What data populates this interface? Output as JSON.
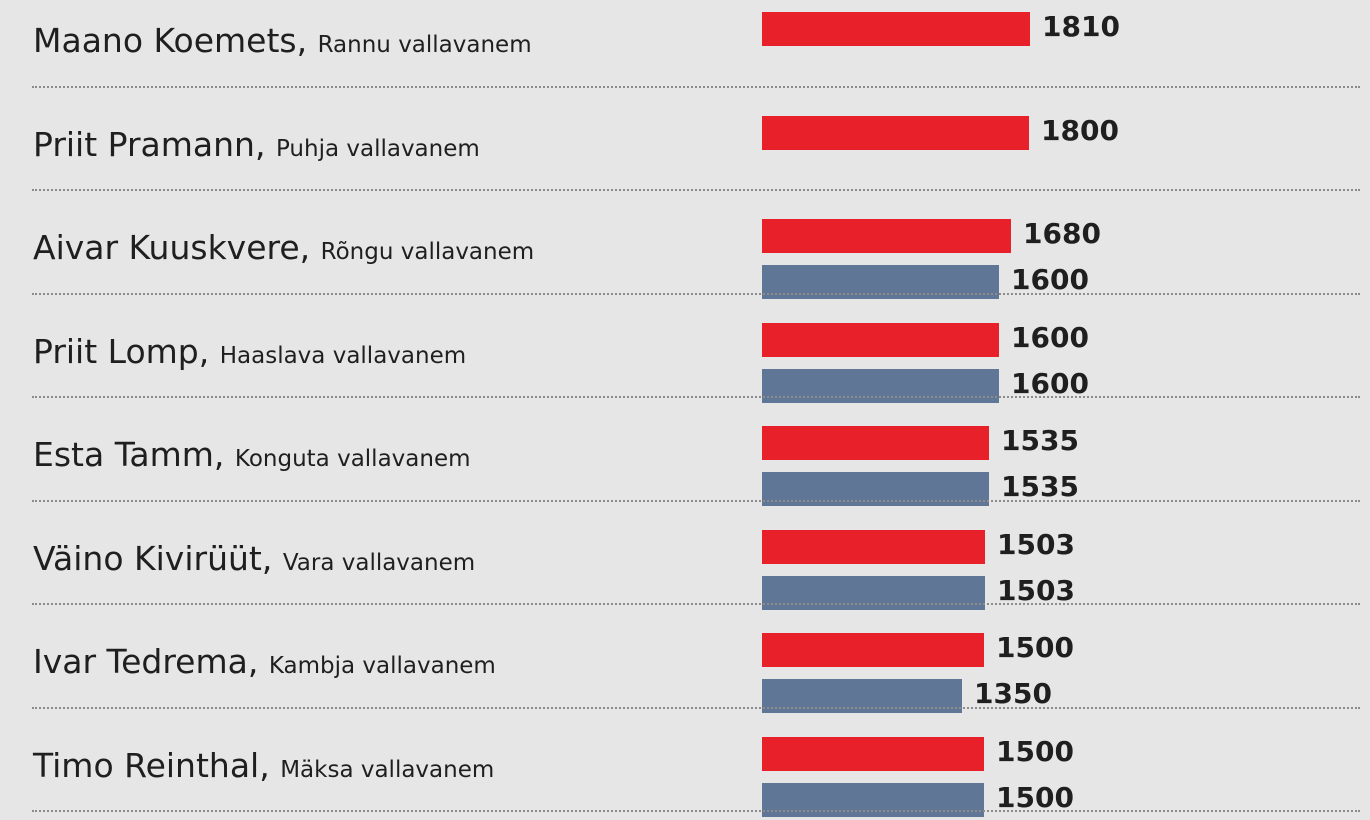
{
  "chart_data": {
    "type": "bar",
    "orientation": "horizontal",
    "grouped": true,
    "colors": [
      "#e8202a",
      "#5f7696"
    ],
    "rows": [
      {
        "name": "Maano Koemets",
        "role": "Rannu vallavanem",
        "values": [
          1810,
          null
        ]
      },
      {
        "name": "Priit Pramann",
        "role": "Puhja vallavanem",
        "values": [
          1800,
          null
        ]
      },
      {
        "name": "Aivar Kuuskvere",
        "role": "Rõngu vallavanem",
        "values": [
          1680,
          1600
        ]
      },
      {
        "name": "Priit Lomp",
        "role": "Haaslava vallavanem",
        "values": [
          1600,
          1600
        ]
      },
      {
        "name": "Esta Tamm",
        "role": "Konguta vallavanem",
        "values": [
          1535,
          1535
        ]
      },
      {
        "name": "Väino Kivirüüt",
        "role": "Vara vallavanem",
        "values": [
          1503,
          1503
        ]
      },
      {
        "name": "Ivar Tedrema",
        "role": "Kambja vallavanem",
        "values": [
          1500,
          1350
        ]
      },
      {
        "name": "Timo Reinthal",
        "role": "Mäksa vallavanem",
        "values": [
          1500,
          1500
        ]
      }
    ]
  }
}
